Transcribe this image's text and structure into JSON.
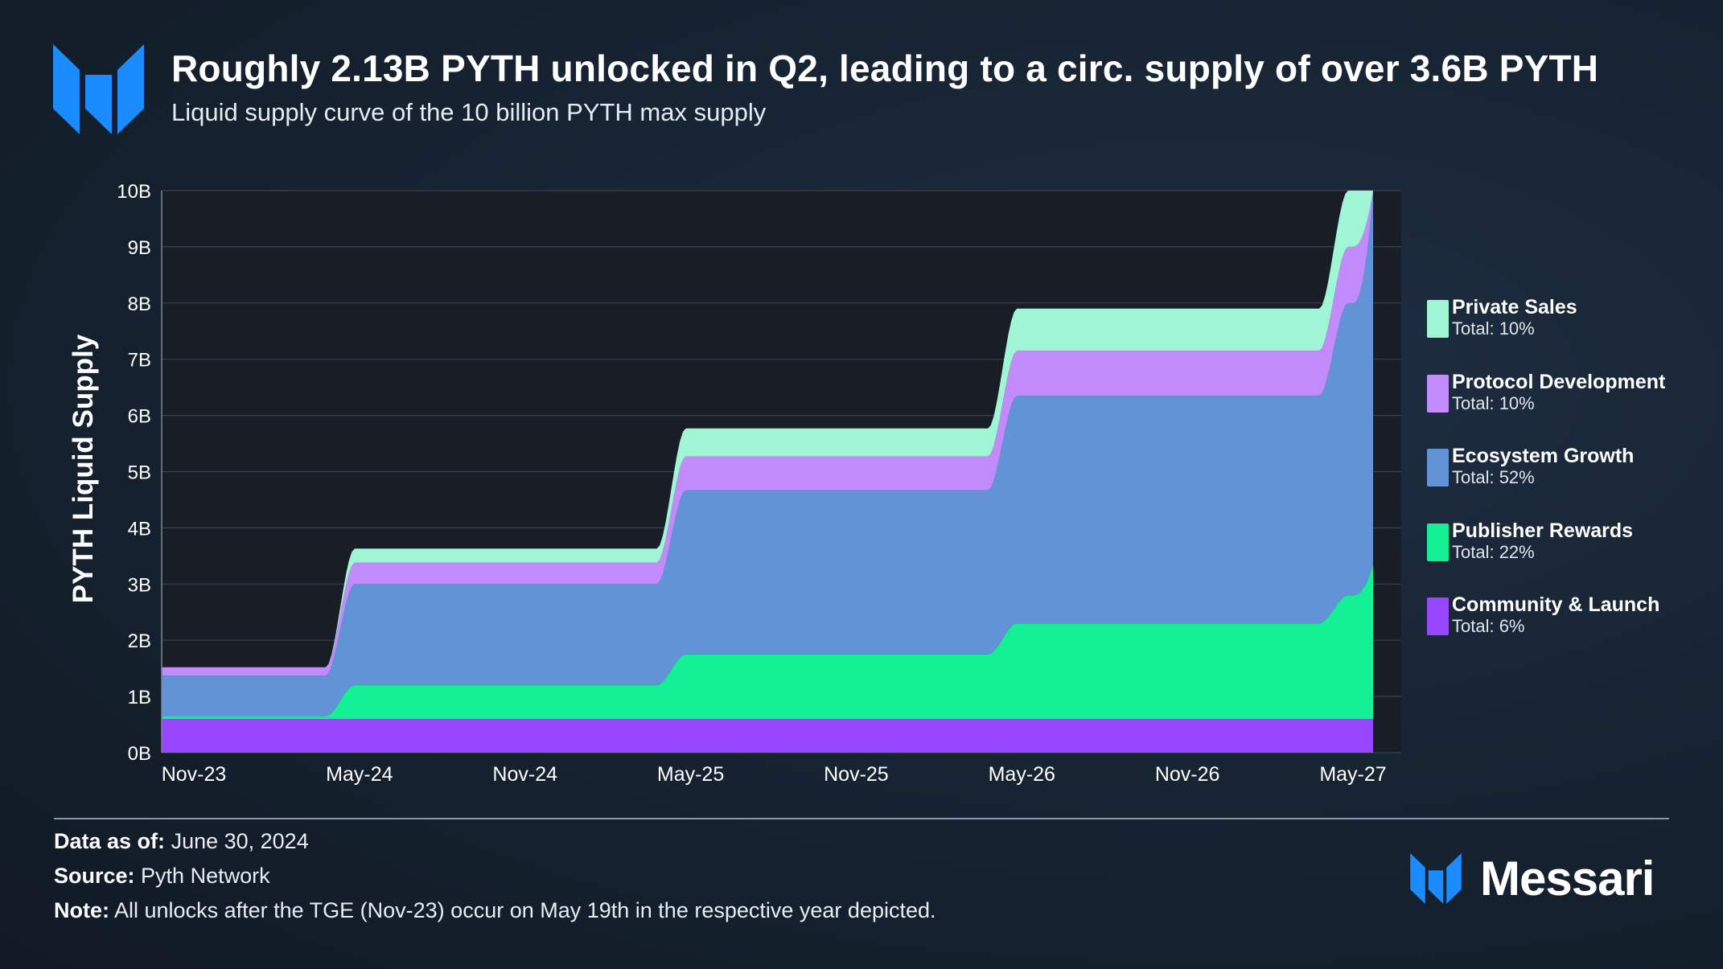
{
  "header": {
    "title": "Roughly 2.13B PYTH unlocked in Q2, leading to a circ. supply of over 3.6B PYTH",
    "subtitle": "Liquid supply curve of the 10 billion PYTH max supply"
  },
  "chart_data": {
    "type": "area",
    "stacked": true,
    "ylabel": "PYTH Liquid Supply",
    "ylim": [
      0,
      10
    ],
    "yticks": [
      0,
      1,
      2,
      3,
      4,
      5,
      6,
      7,
      8,
      9,
      10
    ],
    "ytick_labels": [
      "0B",
      "1B",
      "2B",
      "3B",
      "4B",
      "5B",
      "6B",
      "7B",
      "8B",
      "9B",
      "10B"
    ],
    "xticks": [
      "Nov-23",
      "May-24",
      "Nov-24",
      "May-25",
      "Nov-25",
      "May-26",
      "Nov-26",
      "May-27"
    ],
    "grid": true,
    "legend_position": "right",
    "x": [
      "Nov-23",
      "May-24",
      "Nov-24",
      "May-25",
      "Nov-25",
      "May-26",
      "Nov-26",
      "May-27"
    ],
    "series": [
      {
        "name": "Community & Launch",
        "total": "Total: 6%",
        "color": "#9747ff",
        "values": [
          0.6,
          0.6,
          0.6,
          0.6,
          0.6,
          0.6,
          0.6,
          0.6
        ]
      },
      {
        "name": "Publisher Rewards",
        "total": "Total: 22%",
        "color": "#14f195",
        "values": [
          0.05,
          0.6,
          0.6,
          1.15,
          1.15,
          1.7,
          1.7,
          2.2
        ]
      },
      {
        "name": "Ecosystem Growth",
        "total": "Total: 52%",
        "color": "#6293d6",
        "values": [
          0.72,
          1.8,
          1.8,
          2.92,
          2.92,
          4.05,
          4.05,
          5.2
        ]
      },
      {
        "name": "Protocol Development",
        "total": "Total: 10%",
        "color": "#c28bfb",
        "values": [
          0.15,
          0.38,
          0.38,
          0.6,
          0.6,
          0.8,
          0.8,
          1.0
        ]
      },
      {
        "name": "Private Sales",
        "total": "Total: 10%",
        "color": "#a0f5d5",
        "values": [
          0.0,
          0.25,
          0.25,
          0.5,
          0.5,
          0.75,
          0.75,
          1.0
        ]
      }
    ]
  },
  "footer": {
    "data_as_of_label": "Data as of:",
    "data_as_of_value": "June 30, 2024",
    "source_label": "Source:",
    "source_value": "Pyth Network",
    "note_label": "Note:",
    "note_value": "All unlocks after the TGE (Nov-23) occur on May 19th in the respective year depicted."
  },
  "brand": {
    "name": "Messari",
    "accent_color": "#1a8cff"
  }
}
